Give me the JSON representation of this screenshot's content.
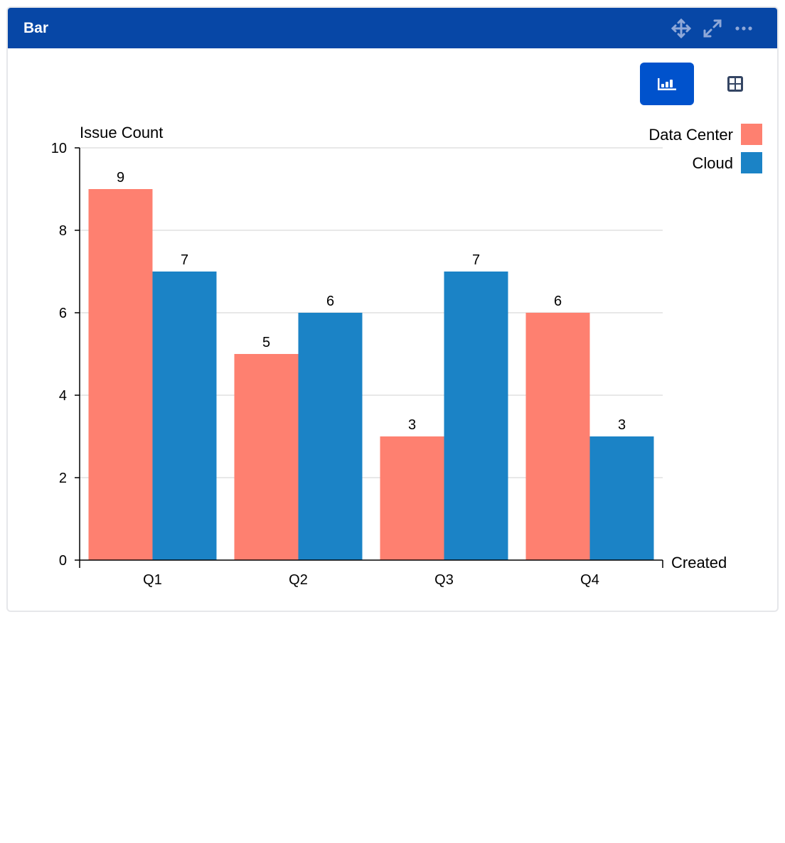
{
  "header": {
    "title": "Bar",
    "icons": [
      "move-icon",
      "expand-icon",
      "more-icon"
    ]
  },
  "view_toggle": {
    "active": "chart",
    "buttons": [
      "bar-chart-icon",
      "table-grid-icon"
    ],
    "accent": "#0052cc"
  },
  "chart_data": {
    "type": "bar",
    "categories": [
      "Q1",
      "Q2",
      "Q3",
      "Q4"
    ],
    "series": [
      {
        "name": "Data Center",
        "values": [
          9,
          5,
          3,
          6
        ],
        "color": "#fe8070"
      },
      {
        "name": "Cloud",
        "values": [
          7,
          6,
          7,
          3
        ],
        "color": "#1b83c6"
      }
    ],
    "xlabel": "Created",
    "ylabel": "Issue Count",
    "ylim": [
      0,
      10
    ],
    "yticks": [
      0,
      2,
      4,
      6,
      8,
      10
    ],
    "grid": true,
    "legend": "top-right",
    "data_labels": true
  }
}
